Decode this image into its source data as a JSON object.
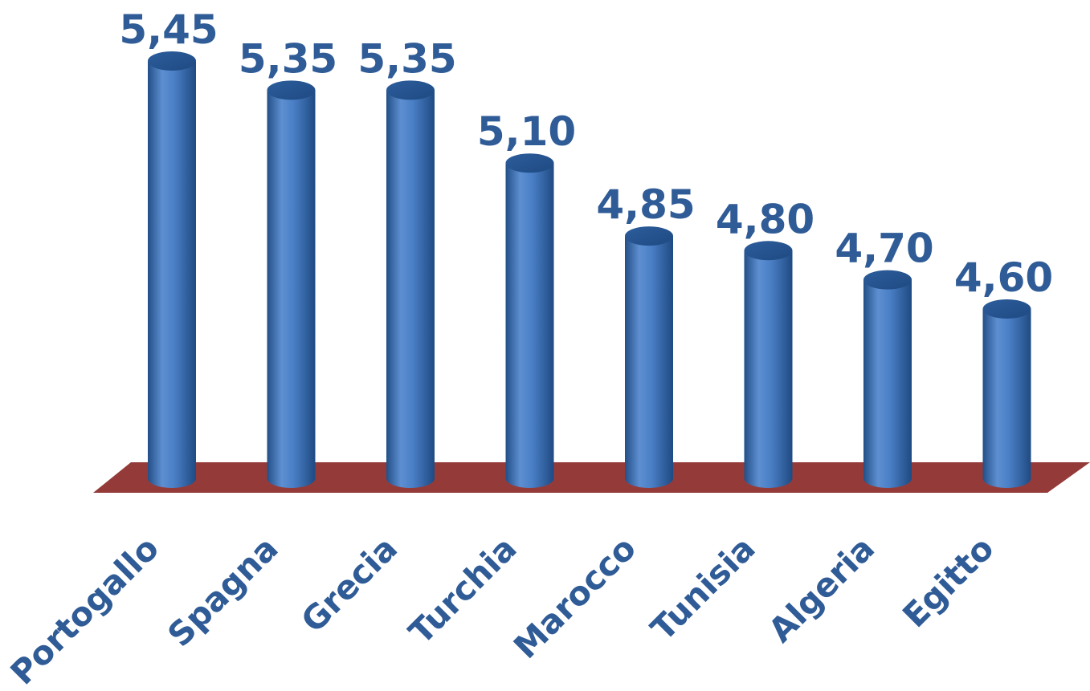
{
  "chart_data": {
    "type": "bar",
    "style": "3d-cylinder",
    "categories": [
      "Portogallo",
      "Spagna",
      "Grecia",
      "Turchia",
      "Marocco",
      "Tunisia",
      "Algeria",
      "Egitto"
    ],
    "values": [
      5.45,
      5.35,
      5.35,
      5.1,
      4.85,
      4.8,
      4.7,
      4.6
    ],
    "value_labels": [
      "5,45",
      "5,35",
      "5,35",
      "5,10",
      "4,85",
      "4,80",
      "4,70",
      "4,60"
    ],
    "title": "",
    "xlabel": "",
    "ylabel": "",
    "grid": false,
    "legend": "none",
    "colors": {
      "bar": "#4a7fc6",
      "bar_dark": "#234f87",
      "bar_light": "#6d9ad6",
      "floor": "#943b3a",
      "labels": "#2f5b96"
    }
  }
}
